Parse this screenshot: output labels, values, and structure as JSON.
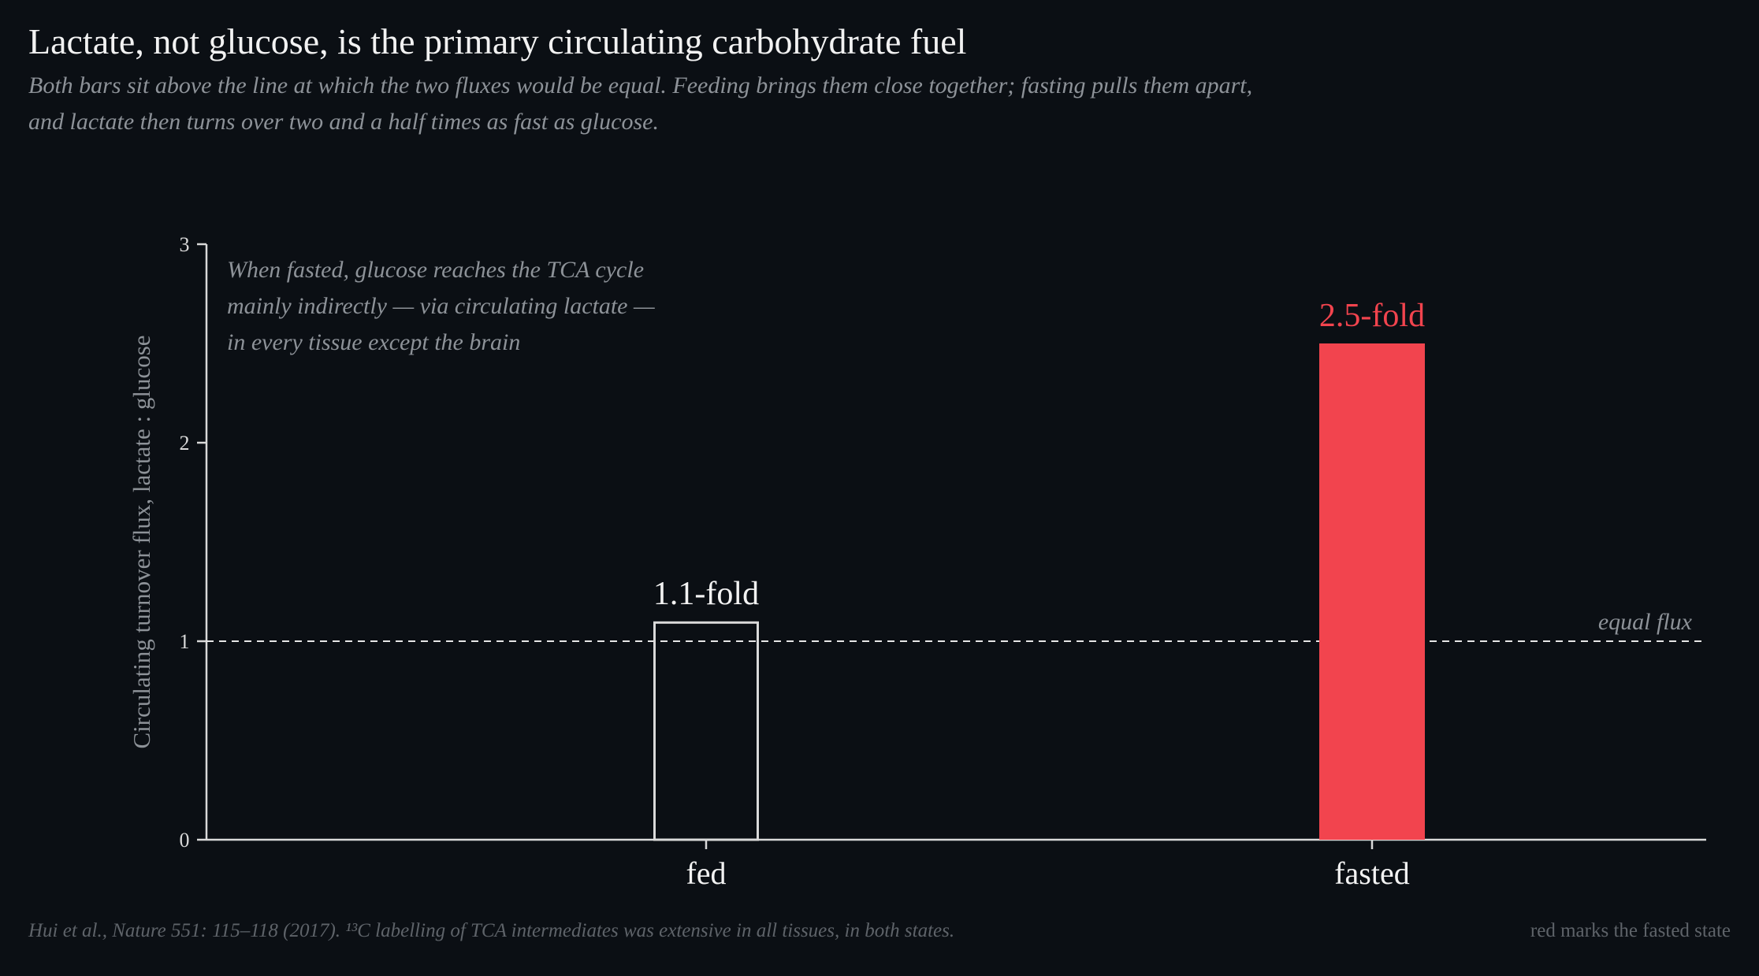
{
  "header": {
    "title": "Lactate, not glucose, is the primary circulating carbohydrate fuel",
    "subtitle_lines": [
      "Both bars sit above the line at which the two fluxes would be equal. Feeding brings them close together; fasting pulls them apart,",
      "and lactate then turns over two and a half times as fast as glucose."
    ]
  },
  "footer": {
    "source": "Hui et al., Nature 551: 115–118 (2017). ¹³C labelling of TCA intermediates was extensive in all tissues, in both states.",
    "legend_note": "red marks the fasted state"
  },
  "colors": {
    "background": "#0b0f14",
    "axis": "#d9d9d9",
    "fed_outline": "#d9d9d9",
    "fasted_fill": "#f2444e",
    "muted_text": "#8d9298"
  },
  "chart_data": {
    "type": "bar",
    "categories": [
      "fed",
      "fasted"
    ],
    "values": [
      1.1,
      2.5
    ],
    "data_labels": [
      "1.1-fold",
      "2.5-fold"
    ],
    "ylabel": "Circulating turnover flux, lactate : glucose",
    "xlabel": "",
    "ylim": [
      0,
      3
    ],
    "yticks": [
      0,
      1,
      2,
      3
    ],
    "grid": false,
    "reference_line": {
      "value": 1,
      "label": "equal flux",
      "style": "dashed"
    },
    "annotation_lines": [
      "When fasted, glucose reaches the TCA cycle",
      "mainly indirectly — via circulating lactate —",
      "in every tissue except the brain"
    ],
    "bar_styles": [
      "outline",
      "filled"
    ]
  }
}
